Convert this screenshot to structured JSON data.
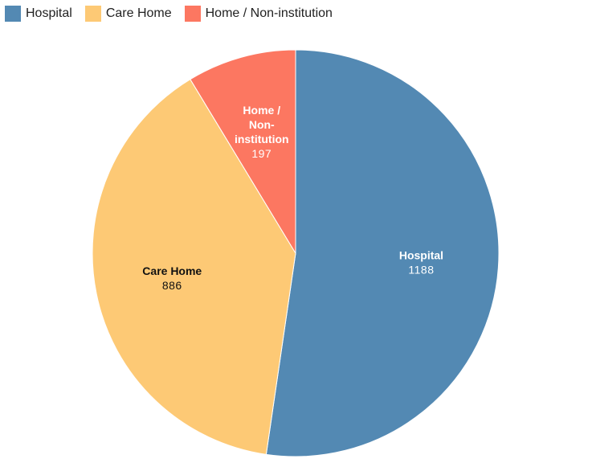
{
  "chart_data": {
    "type": "pie",
    "categories": [
      "Hospital",
      "Care Home",
      "Home / Non-institution"
    ],
    "values": [
      1188,
      886,
      197
    ],
    "colors": [
      "#5389b3",
      "#fdc975",
      "#fc7761"
    ],
    "label_colors": [
      "#ffffff",
      "#111111",
      "#ffffff"
    ],
    "slice_labels": [
      {
        "name_lines": [
          "Hospital"
        ],
        "value": "1188"
      },
      {
        "name_lines": [
          "Care Home"
        ],
        "value": "886"
      },
      {
        "name_lines": [
          "Home /",
          "Non-",
          "institution"
        ],
        "value": "197"
      }
    ],
    "legend_position": "top-left"
  },
  "legend": {
    "items": [
      {
        "label": "Hospital",
        "color": "#5389b3"
      },
      {
        "label": "Care Home",
        "color": "#fdc975"
      },
      {
        "label": "Home / Non-institution",
        "color": "#fc7761"
      }
    ]
  }
}
